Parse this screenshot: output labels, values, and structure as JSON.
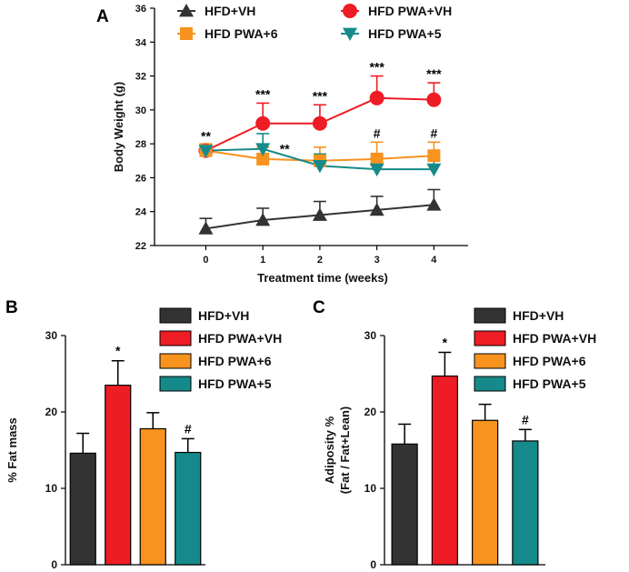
{
  "chart_data": [
    {
      "id": "A",
      "type": "line",
      "panel_label": "A",
      "xlabel": "Treatment time (weeks)",
      "ylabel": "Body Weight (g)",
      "x": [
        0,
        1,
        2,
        3,
        4
      ],
      "xlim": [
        -0.9,
        4.6
      ],
      "ylim": [
        22,
        36
      ],
      "yticks": [
        22,
        24,
        26,
        28,
        30,
        32,
        34,
        36
      ],
      "series": [
        {
          "name": "HFD+VH",
          "marker": "triangle-up",
          "color": "#333333",
          "values": [
            23.0,
            23.5,
            23.8,
            24.1,
            24.4
          ],
          "errors": [
            0.6,
            0.7,
            0.8,
            0.8,
            0.9
          ],
          "labels": [
            "",
            "",
            "",
            "",
            ""
          ]
        },
        {
          "name": "HFD PWA+VH",
          "marker": "circle",
          "color": "#ee1c24",
          "values": [
            27.6,
            29.2,
            29.2,
            30.7,
            30.6
          ],
          "errors": [
            0.3,
            1.2,
            1.1,
            1.3,
            1.0
          ],
          "labels": [
            "**",
            "***",
            "***",
            "***",
            "***"
          ]
        },
        {
          "name": "HFD PWA+6",
          "marker": "square",
          "color": "#f7931e",
          "values": [
            27.6,
            27.1,
            27.0,
            27.1,
            27.3
          ],
          "errors": [
            0.4,
            0.7,
            0.8,
            1.0,
            0.8
          ],
          "labels": [
            "",
            "",
            "",
            "#",
            "#"
          ]
        },
        {
          "name": "HFD PWA+5",
          "marker": "triangle-down",
          "color": "#168a8a",
          "values": [
            27.6,
            27.7,
            26.7,
            26.5,
            26.5
          ],
          "errors": [
            0.3,
            0.9,
            0.7,
            0.7,
            0.7
          ],
          "labels": [
            "",
            "**",
            "",
            "",
            ""
          ]
        }
      ]
    },
    {
      "id": "B",
      "type": "bar",
      "panel_label": "B",
      "ylabel": "% Fat mass",
      "ylim": [
        0,
        30
      ],
      "yticks": [
        0,
        10,
        20,
        30
      ],
      "categories": [
        "HFD+VH",
        "HFD PWA+VH",
        "HFD PWA+6",
        "HFD PWA+5"
      ],
      "colors": [
        "#333333",
        "#ee1c24",
        "#f7931e",
        "#168a8a"
      ],
      "values": [
        14.6,
        23.5,
        17.8,
        14.7
      ],
      "errors": [
        2.6,
        3.2,
        2.1,
        1.8
      ],
      "labels": [
        "",
        "*",
        "",
        "#"
      ]
    },
    {
      "id": "C",
      "type": "bar",
      "panel_label": "C",
      "ylabel_lines": [
        "Adiposity %",
        "(Fat / Fat+Lean)"
      ],
      "ylim": [
        0,
        30
      ],
      "yticks": [
        0,
        10,
        20,
        30
      ],
      "categories": [
        "HFD+VH",
        "HFD PWA+VH",
        "HFD PWA+6",
        "HFD PWA+5"
      ],
      "colors": [
        "#333333",
        "#ee1c24",
        "#f7931e",
        "#168a8a"
      ],
      "values": [
        15.8,
        24.7,
        18.9,
        16.2
      ],
      "errors": [
        2.6,
        3.1,
        2.1,
        1.5
      ],
      "labels": [
        "",
        "*",
        "",
        "#"
      ]
    }
  ]
}
